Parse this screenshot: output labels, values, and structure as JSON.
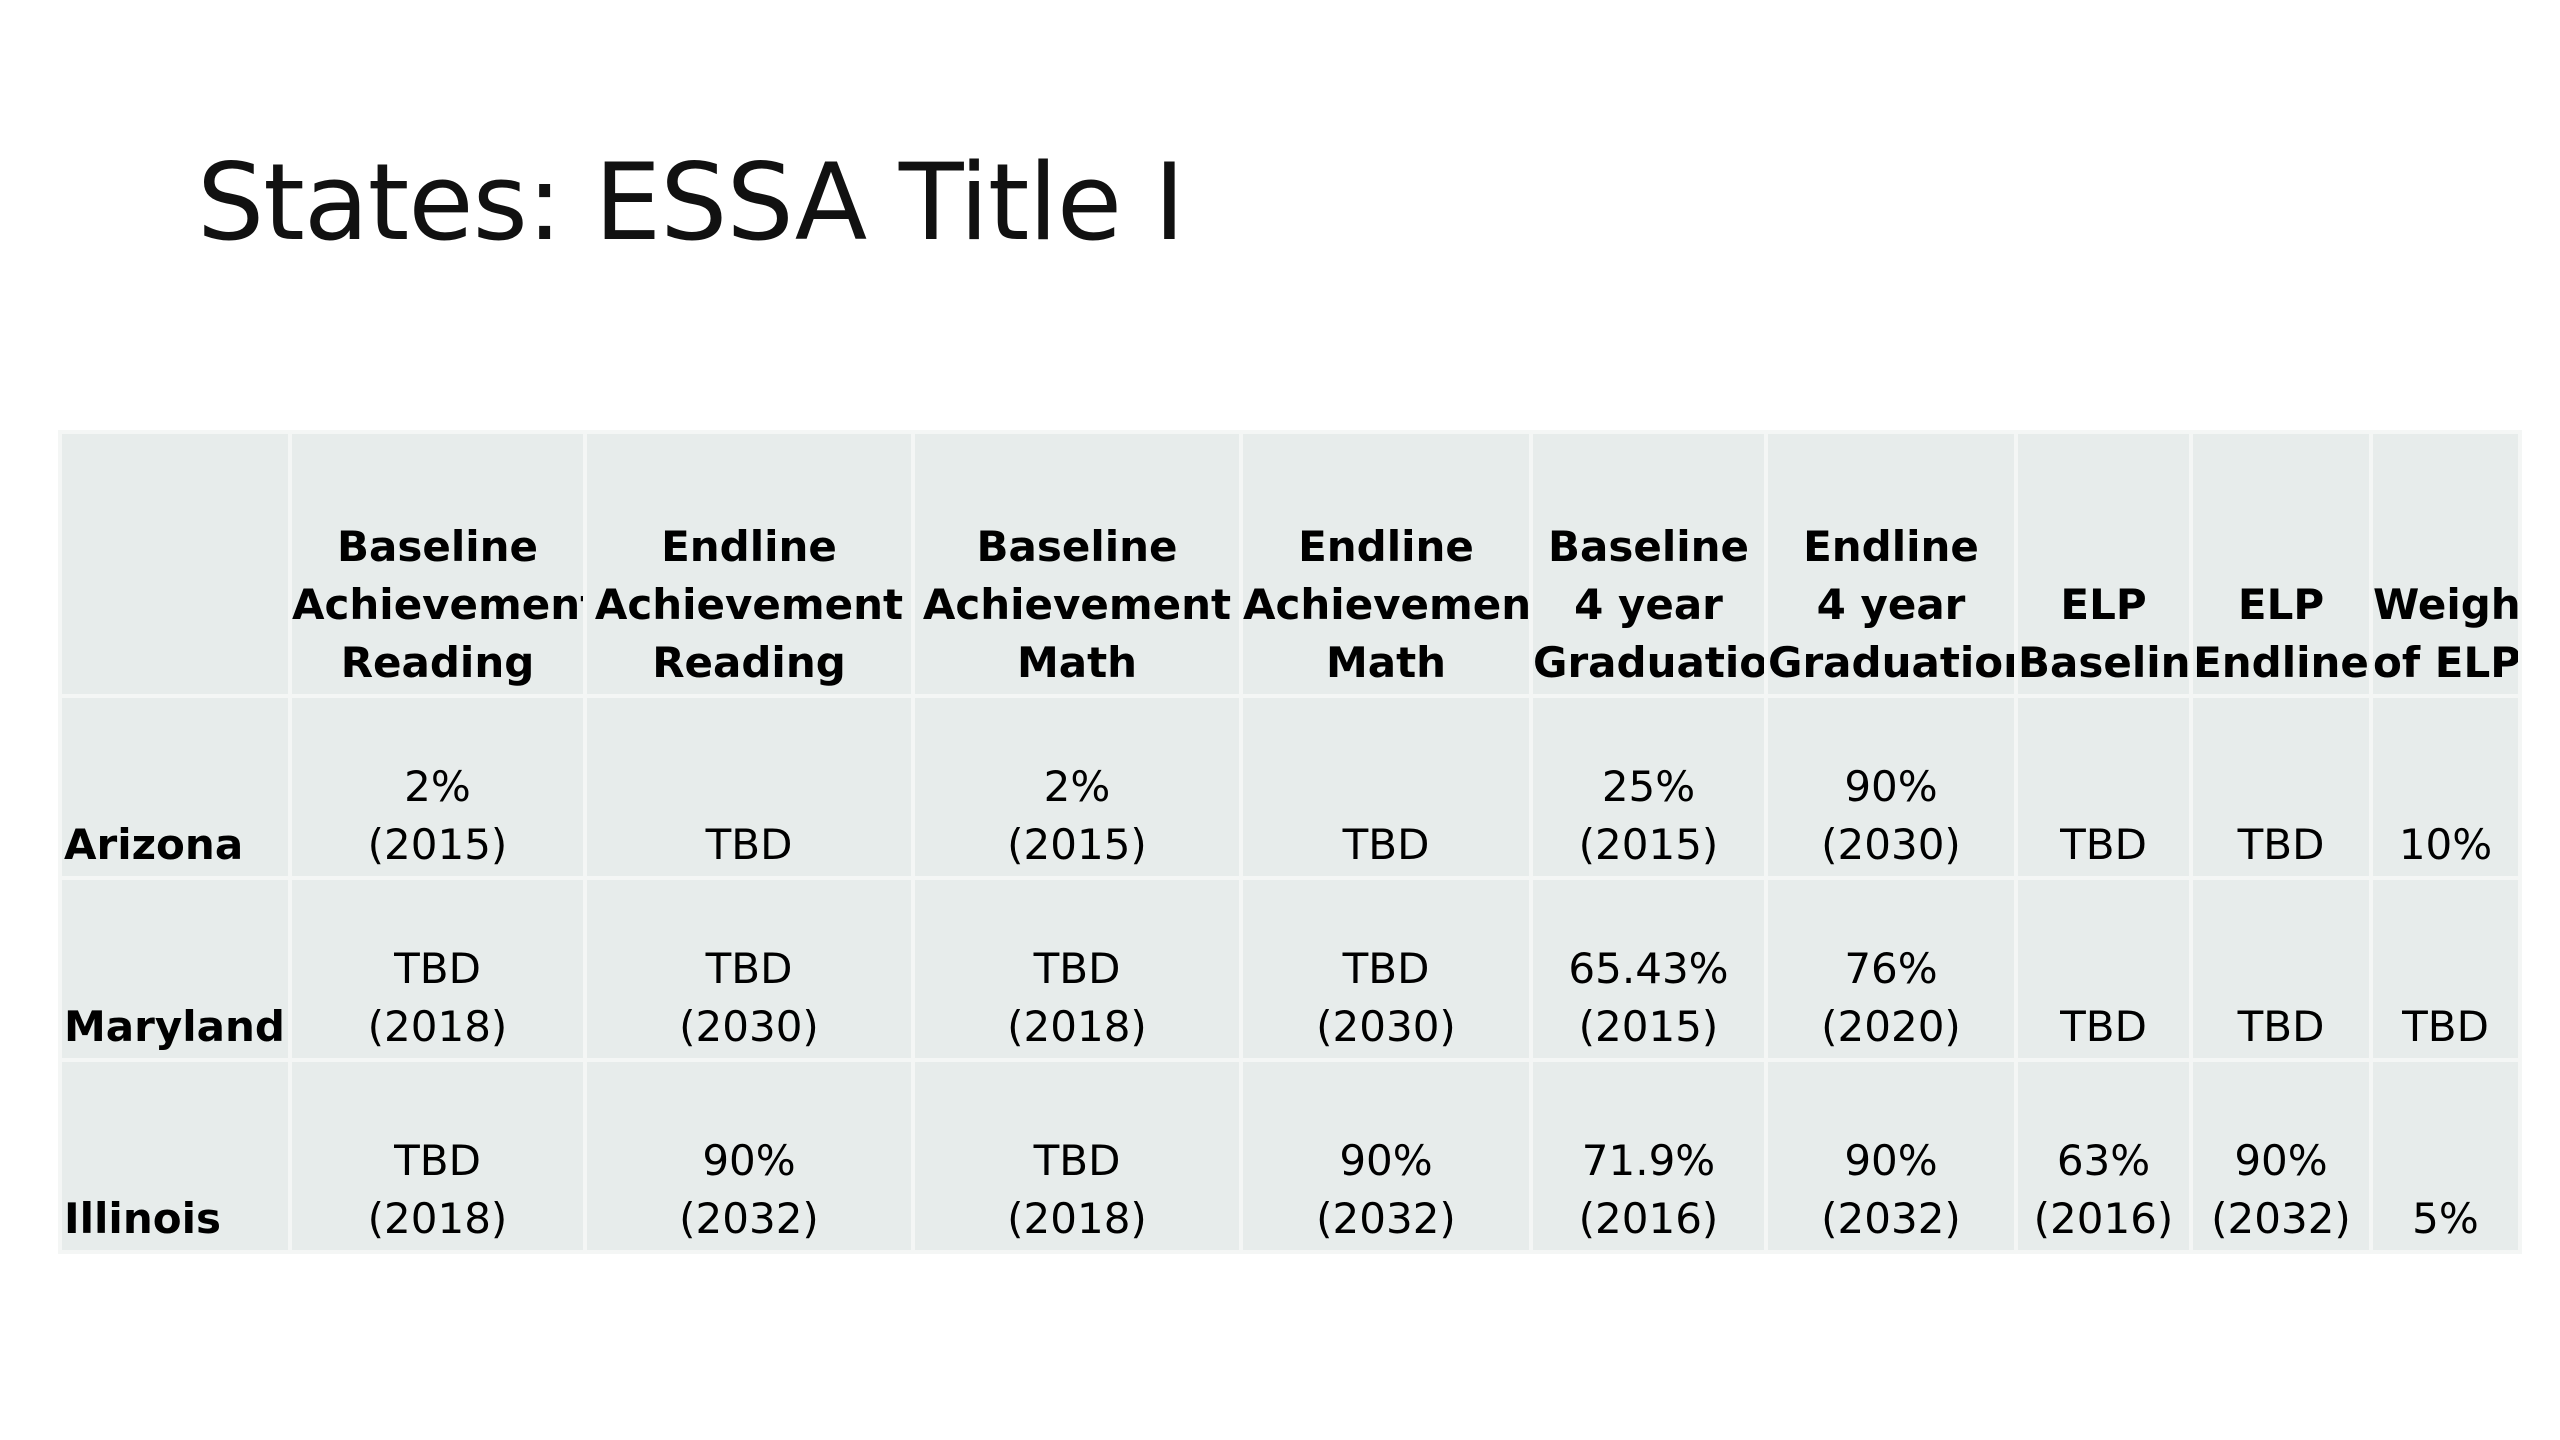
{
  "slide": {
    "title": "States: ESSA Title I"
  },
  "table": {
    "headers": [
      [
        ""
      ],
      [
        "Baseline",
        "Achievement",
        "Reading"
      ],
      [
        "Endline",
        "Achievement",
        "Reading"
      ],
      [
        "Baseline",
        "Achievement",
        "Math"
      ],
      [
        "Endline",
        "Achievement",
        "Math"
      ],
      [
        "Baseline",
        "4 year",
        "Graduation"
      ],
      [
        "Endline",
        "4 year",
        "Graduation"
      ],
      [
        "ELP",
        "Baseline"
      ],
      [
        "ELP",
        "Endline"
      ],
      [
        "Weight",
        "of ELP"
      ]
    ],
    "rows": [
      {
        "state": "Arizona",
        "cells": [
          [
            "2%",
            "(2015)"
          ],
          [
            "TBD"
          ],
          [
            "2%",
            "(2015)"
          ],
          [
            "TBD"
          ],
          [
            "25%",
            "(2015)"
          ],
          [
            "90%",
            "(2030)"
          ],
          [
            "TBD"
          ],
          [
            "TBD"
          ],
          [
            "10%"
          ]
        ]
      },
      {
        "state": "Maryland",
        "cells": [
          [
            "TBD",
            "(2018)"
          ],
          [
            "TBD",
            "(2030)"
          ],
          [
            "TBD",
            "(2018)"
          ],
          [
            "TBD",
            "(2030)"
          ],
          [
            "65.43%",
            "(2015)"
          ],
          [
            "76%",
            "(2020)"
          ],
          [
            "TBD"
          ],
          [
            "TBD"
          ],
          [
            "TBD"
          ]
        ]
      },
      {
        "state": "Illinois",
        "cells": [
          [
            "TBD",
            "(2018)"
          ],
          [
            "90%",
            "(2032)"
          ],
          [
            "TBD",
            "(2018)"
          ],
          [
            "90%",
            "(2032)"
          ],
          [
            "71.9%",
            "(2016)"
          ],
          [
            "90%",
            "(2032)"
          ],
          [
            "63%",
            "(2016)"
          ],
          [
            "90%",
            "(2032)"
          ],
          [
            "5%"
          ]
        ]
      }
    ]
  }
}
